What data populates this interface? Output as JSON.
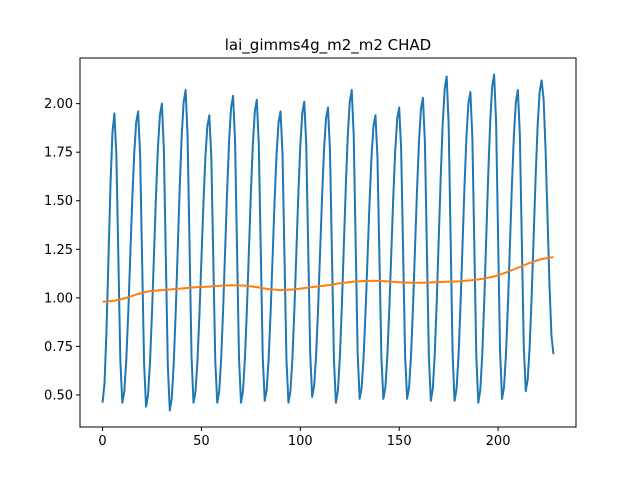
{
  "chart_data": {
    "type": "line",
    "title": "lai_gimms4g_m2_m2 CHAD",
    "xlabel": "",
    "ylabel": "",
    "xlim": [
      -11.4,
      239.4
    ],
    "ylim": [
      0.335,
      2.235
    ],
    "x_ticks": [
      0,
      50,
      100,
      150,
      200
    ],
    "x_tick_labels": [
      "0",
      "50",
      "100",
      "150",
      "200"
    ],
    "y_ticks": [
      0.5,
      0.75,
      1.0,
      1.25,
      1.5,
      1.75,
      2.0
    ],
    "y_tick_labels": [
      "0.50",
      "0.75",
      "1.00",
      "1.25",
      "1.50",
      "1.75",
      "2.00"
    ],
    "grid": false,
    "legend": "none",
    "n_points": 229,
    "series": [
      {
        "color": "#1f77b4",
        "style": "seasonal oscillation, period 12",
        "cycle_start_x": [
          0,
          10,
          22,
          34,
          46,
          58,
          70,
          82,
          94,
          106,
          118,
          130,
          142,
          154,
          166,
          178,
          190,
          202,
          214
        ],
        "cycle_peak_x": [
          6,
          18,
          30,
          42,
          54,
          66,
          78,
          90,
          102,
          114,
          126,
          138,
          150,
          162,
          174,
          186,
          198,
          210,
          222
        ],
        "cycle_peak_y": [
          1.95,
          1.96,
          2.0,
          2.07,
          1.94,
          2.04,
          2.02,
          1.96,
          2.01,
          1.98,
          2.07,
          1.94,
          1.98,
          2.03,
          2.14,
          2.06,
          2.15,
          2.07,
          2.12
        ],
        "cycle_min_y": [
          0.46,
          0.46,
          0.44,
          0.42,
          0.46,
          0.46,
          0.46,
          0.47,
          0.46,
          0.49,
          0.46,
          0.48,
          0.48,
          0.48,
          0.47,
          0.47,
          0.46,
          0.48,
          0.52
        ],
        "last_x": 228,
        "last_y": 0.71
      },
      {
        "color": "#ff7f0e",
        "style": "smooth trend",
        "x": [
          0,
          6,
          12,
          18,
          24,
          30,
          36,
          42,
          48,
          54,
          60,
          66,
          72,
          78,
          84,
          90,
          96,
          102,
          108,
          114,
          120,
          126,
          132,
          138,
          144,
          150,
          156,
          162,
          168,
          174,
          180,
          186,
          192,
          198,
          204,
          210,
          216,
          222,
          228
        ],
        "y": [
          0.98,
          0.985,
          1.0,
          1.02,
          1.035,
          1.04,
          1.045,
          1.05,
          1.055,
          1.058,
          1.063,
          1.065,
          1.063,
          1.055,
          1.045,
          1.04,
          1.043,
          1.05,
          1.058,
          1.065,
          1.075,
          1.082,
          1.087,
          1.088,
          1.085,
          1.08,
          1.078,
          1.078,
          1.08,
          1.083,
          1.085,
          1.09,
          1.098,
          1.11,
          1.13,
          1.155,
          1.18,
          1.2,
          1.21
        ]
      }
    ]
  }
}
